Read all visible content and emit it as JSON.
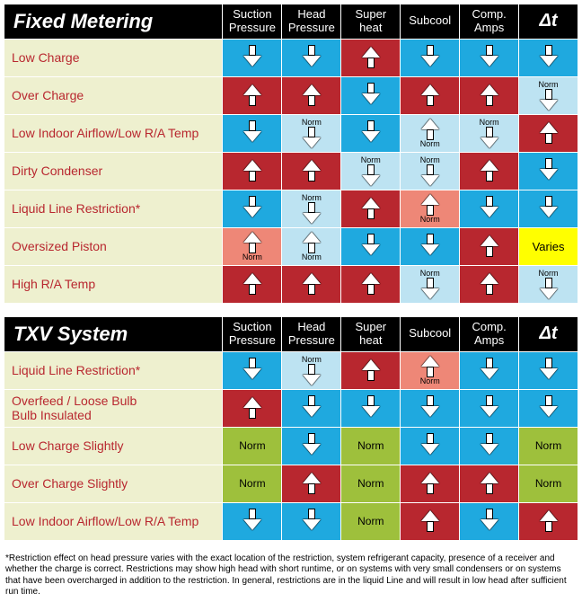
{
  "colors": {
    "up": "#b8272f",
    "down": "#1fa9df",
    "norm_light": "#bde3f2",
    "norm_salmon": "#ee8777",
    "label_bg": "#eef0cf",
    "label_text": "#b8272f",
    "green": "#9ec03c",
    "yellow": "#ffff00",
    "black": "#000000"
  },
  "arrow_style": {
    "shaft_w": 8,
    "shaft_h": 12,
    "head_w": 20,
    "head_h": 12,
    "fill": "#ffffff",
    "stroke": "#000000"
  },
  "columns": [
    {
      "key": "suction",
      "label": "Suction\nPressure"
    },
    {
      "key": "head",
      "label": "Head\nPressure"
    },
    {
      "key": "superheat",
      "label": "Super\nheat"
    },
    {
      "key": "subcool",
      "label": "Subcool"
    },
    {
      "key": "amps",
      "label": "Comp.\nAmps"
    },
    {
      "key": "deltat",
      "label": "Δt"
    }
  ],
  "tables": [
    {
      "title": "Fixed Metering",
      "rows": [
        {
          "label": "Low Charge",
          "cells": [
            {
              "t": "down"
            },
            {
              "t": "down"
            },
            {
              "t": "up"
            },
            {
              "t": "down"
            },
            {
              "t": "down"
            },
            {
              "t": "down"
            }
          ]
        },
        {
          "label": "Over Charge",
          "cells": [
            {
              "t": "up"
            },
            {
              "t": "up"
            },
            {
              "t": "down"
            },
            {
              "t": "up"
            },
            {
              "t": "up"
            },
            {
              "t": "norm-down"
            }
          ]
        },
        {
          "label": "Low Indoor Airflow/Low R/A Temp",
          "cells": [
            {
              "t": "down"
            },
            {
              "t": "norm-down"
            },
            {
              "t": "down"
            },
            {
              "t": "norm-up"
            },
            {
              "t": "norm-down"
            },
            {
              "t": "up"
            }
          ]
        },
        {
          "label": "Dirty Condenser",
          "cells": [
            {
              "t": "up"
            },
            {
              "t": "up"
            },
            {
              "t": "norm-down"
            },
            {
              "t": "norm-down"
            },
            {
              "t": "up"
            },
            {
              "t": "down"
            }
          ]
        },
        {
          "label": "Liquid Line Restriction*",
          "cells": [
            {
              "t": "down"
            },
            {
              "t": "norm-down"
            },
            {
              "t": "up"
            },
            {
              "t": "norm-up",
              "bg": "norm_salmon"
            },
            {
              "t": "down"
            },
            {
              "t": "down"
            }
          ]
        },
        {
          "label": "Oversized Piston",
          "cells": [
            {
              "t": "norm-up",
              "bg": "norm_salmon"
            },
            {
              "t": "norm-up"
            },
            {
              "t": "down"
            },
            {
              "t": "down"
            },
            {
              "t": "up"
            },
            {
              "t": "varies",
              "text": "Varies"
            }
          ]
        },
        {
          "label": "High R/A Temp",
          "cells": [
            {
              "t": "up"
            },
            {
              "t": "up"
            },
            {
              "t": "up"
            },
            {
              "t": "norm-down"
            },
            {
              "t": "up"
            },
            {
              "t": "norm-down"
            }
          ]
        }
      ]
    },
    {
      "title": "TXV System",
      "rows": [
        {
          "label": "Liquid Line Restriction*",
          "cells": [
            {
              "t": "down"
            },
            {
              "t": "norm-down"
            },
            {
              "t": "up"
            },
            {
              "t": "norm-up",
              "bg": "norm_salmon"
            },
            {
              "t": "down"
            },
            {
              "t": "down"
            }
          ]
        },
        {
          "label": "Overfeed / Loose Bulb\nBulb Insulated",
          "cells": [
            {
              "t": "up"
            },
            {
              "t": "down"
            },
            {
              "t": "down"
            },
            {
              "t": "down"
            },
            {
              "t": "down"
            },
            {
              "t": "down"
            }
          ]
        },
        {
          "label": "Low Charge   Slightly",
          "cells": [
            {
              "t": "normplain",
              "text": "Norm"
            },
            {
              "t": "down"
            },
            {
              "t": "normplain",
              "text": "Norm"
            },
            {
              "t": "down"
            },
            {
              "t": "down"
            },
            {
              "t": "normplain",
              "text": "Norm"
            }
          ]
        },
        {
          "label": "Over Charge   Slightly",
          "cells": [
            {
              "t": "normplain",
              "text": "Norm"
            },
            {
              "t": "up"
            },
            {
              "t": "normplain",
              "text": "Norm"
            },
            {
              "t": "up"
            },
            {
              "t": "up"
            },
            {
              "t": "normplain",
              "text": "Norm"
            }
          ]
        },
        {
          "label": "Low Indoor Airflow/Low R/A Temp",
          "cells": [
            {
              "t": "down"
            },
            {
              "t": "down"
            },
            {
              "t": "normplain",
              "text": "Norm"
            },
            {
              "t": "up"
            },
            {
              "t": "down"
            },
            {
              "t": "up"
            }
          ]
        }
      ]
    }
  ],
  "footnote": "*Restriction effect on head pressure varies with the exact location of the restriction, system refrigerant capacity, presence of a receiver and whether the charge is correct. Restrictions may show high head with short runtime, or on systems with very small condensers or on systems that have been overcharged in addition to the restriction. In general, restrictions are in the liquid Line and will result in low head after sufficient run time."
}
